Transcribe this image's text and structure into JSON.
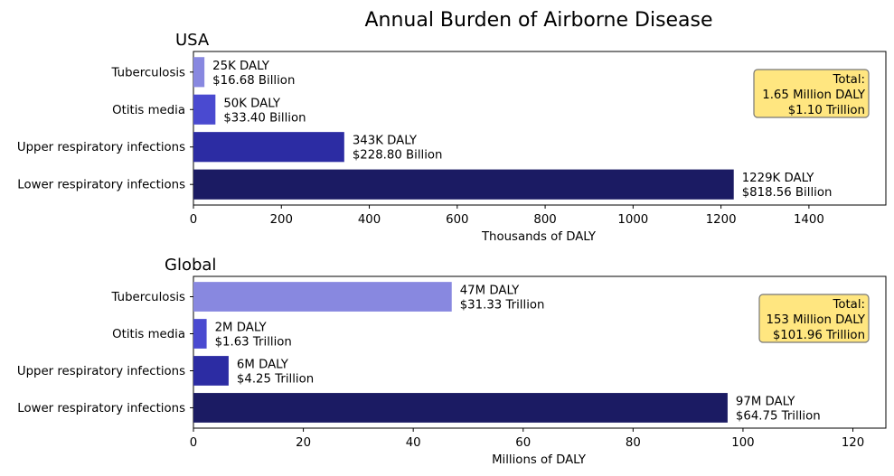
{
  "figure_title": "Annual Burden of Airborne Disease",
  "colors": {
    "bars": [
      "#1b1b63",
      "#2c2ca3",
      "#4a4ad0",
      "#8888e0"
    ],
    "total_box_fill": "#ffe680",
    "total_box_edge": "#777777"
  },
  "chart_data": [
    {
      "type": "bar",
      "orientation": "horizontal",
      "title": "USA",
      "xlabel": "Thousands of DALY",
      "ylabel": "",
      "xlim": [
        0,
        1575
      ],
      "xticks": [
        0,
        200,
        400,
        600,
        800,
        1000,
        1200,
        1400
      ],
      "categories": [
        "Lower respiratory infections",
        "Upper respiratory infections",
        "Otitis media",
        "Tuberculosis"
      ],
      "values": [
        1229,
        343,
        50,
        25
      ],
      "labels": [
        [
          "1229K DALY",
          "$818.56 Billion"
        ],
        [
          "343K DALY",
          "$228.80 Billion"
        ],
        [
          "50K DALY",
          "$33.40 Billion"
        ],
        [
          "25K DALY",
          "$16.68 Billion"
        ]
      ],
      "total_box": [
        "Total:",
        "1.65 Million DALY",
        "$1.10 Trillion"
      ],
      "total_box_placement": "top-right"
    },
    {
      "type": "bar",
      "orientation": "horizontal",
      "title": "Global",
      "xlabel": "Millions of DALY",
      "ylabel": "",
      "xlim": [
        0,
        126
      ],
      "xticks": [
        0,
        20,
        40,
        60,
        80,
        100,
        120
      ],
      "categories": [
        "Lower respiratory infections",
        "Upper respiratory infections",
        "Otitis media",
        "Tuberculosis"
      ],
      "values": [
        97.2,
        6.4,
        2.4,
        47
      ],
      "labels": [
        [
          "97M DALY",
          "$64.75 Trillion"
        ],
        [
          "6M DALY",
          "$4.25 Trillion"
        ],
        [
          "2M DALY",
          "$1.63 Trillion"
        ],
        [
          "47M DALY",
          "$31.33 Trillion"
        ]
      ],
      "total_box": [
        "Total:",
        "153 Million DALY",
        "$101.96 Trillion"
      ],
      "total_box_placement": "top-right"
    }
  ]
}
